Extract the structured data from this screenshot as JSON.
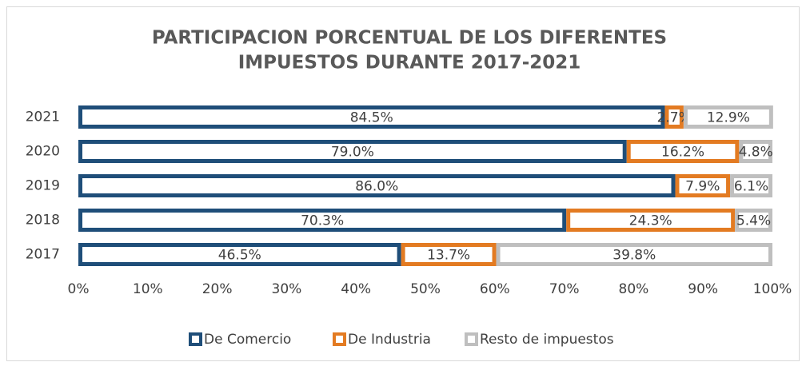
{
  "chart_data": {
    "type": "bar",
    "orientation": "horizontal",
    "stacked": true,
    "title": [
      "PARTICIPACION PORCENTUAL DE LOS DIFERENTES",
      "IMPUESTOS DURANTE 2017-2021"
    ],
    "categories": [
      "2021",
      "2020",
      "2019",
      "2018",
      "2017"
    ],
    "series": [
      {
        "name": "De Comercio",
        "color": "#1f4e79",
        "values": [
          84.5,
          79.0,
          86.0,
          70.3,
          46.5
        ],
        "value_labels": [
          "84.5%",
          "79.0%",
          "86.0%",
          "70.3%",
          "46.5%"
        ]
      },
      {
        "name": "De Industria",
        "color": "#e37b22",
        "values": [
          2.7,
          16.2,
          7.9,
          24.3,
          13.7
        ],
        "value_labels": [
          "2.7%",
          "16.2%",
          "7.9%",
          "24.3%",
          "13.7%"
        ]
      },
      {
        "name": "Resto de impuestos",
        "color": "#bfbfbf",
        "values": [
          12.9,
          4.8,
          6.1,
          5.4,
          39.8
        ],
        "value_labels": [
          "12.9%",
          "4.8%",
          "6.1%",
          "5.4%",
          "39.8%"
        ]
      }
    ],
    "xlim": [
      0,
      100
    ],
    "xticks": [
      {
        "value": 0,
        "label": "0%"
      },
      {
        "value": 10,
        "label": "10%"
      },
      {
        "value": 20,
        "label": "20%"
      },
      {
        "value": 30,
        "label": "30%"
      },
      {
        "value": 40,
        "label": "40%"
      },
      {
        "value": 50,
        "label": "50%"
      },
      {
        "value": 60,
        "label": "60%"
      },
      {
        "value": 70,
        "label": "70%"
      },
      {
        "value": 80,
        "label": "80%"
      },
      {
        "value": 90,
        "label": "90%"
      },
      {
        "value": 100,
        "label": "100%"
      }
    ],
    "grid": false,
    "legend": "bottom"
  }
}
